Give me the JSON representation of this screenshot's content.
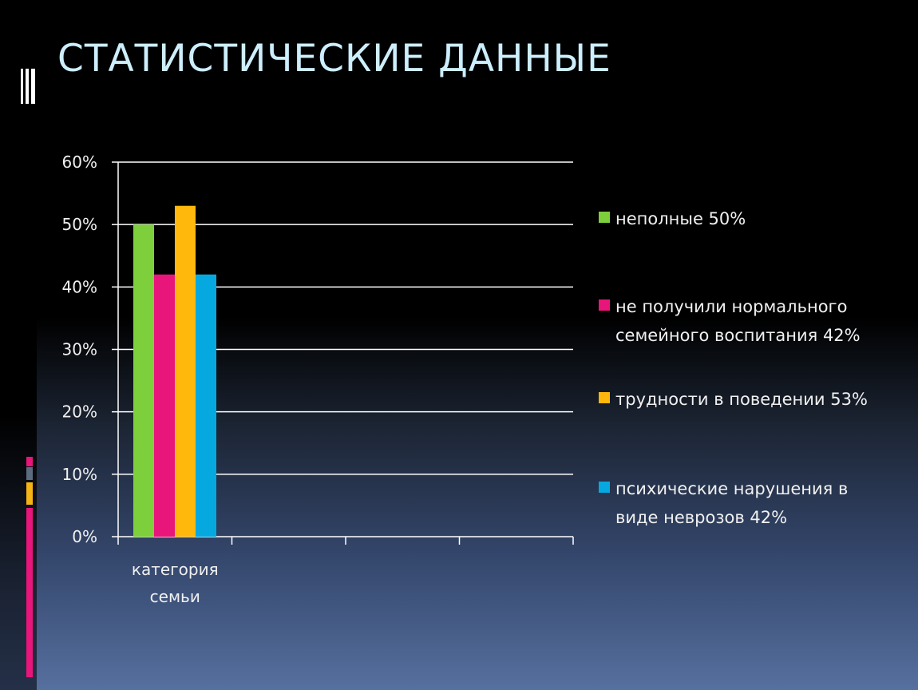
{
  "slide": {
    "title": "СТАТИСТИЧЕСКИЕ ДАННЫЕ"
  },
  "colors": {
    "background_top": "#000000",
    "background_bottom": "#56709f",
    "title": "#cdeefc",
    "deco_pink": "#e8157a",
    "deco_gold": "#f5b416",
    "deco_gray": "#5b6c80"
  },
  "chart_data": {
    "type": "bar",
    "categories": [
      "категория семьи"
    ],
    "series": [
      {
        "name": "неполные 50%",
        "values": [
          0.5
        ],
        "color": "#7dcf3b"
      },
      {
        "name": "не получили нормального семейного воспитания 42%",
        "values": [
          0.42
        ],
        "color": "#e8167b"
      },
      {
        "name": "трудности в поведении 53%",
        "values": [
          0.53
        ],
        "color": "#ffb80b"
      },
      {
        "name": "психические нарушения в виде неврозов  42%",
        "values": [
          0.42
        ],
        "color": "#05a9df"
      }
    ],
    "ylim": [
      0,
      0.6
    ],
    "yticks": [
      "0%",
      "10%",
      "20%",
      "30%",
      "40%",
      "50%",
      "60%"
    ],
    "grid": true,
    "legend": "right"
  }
}
